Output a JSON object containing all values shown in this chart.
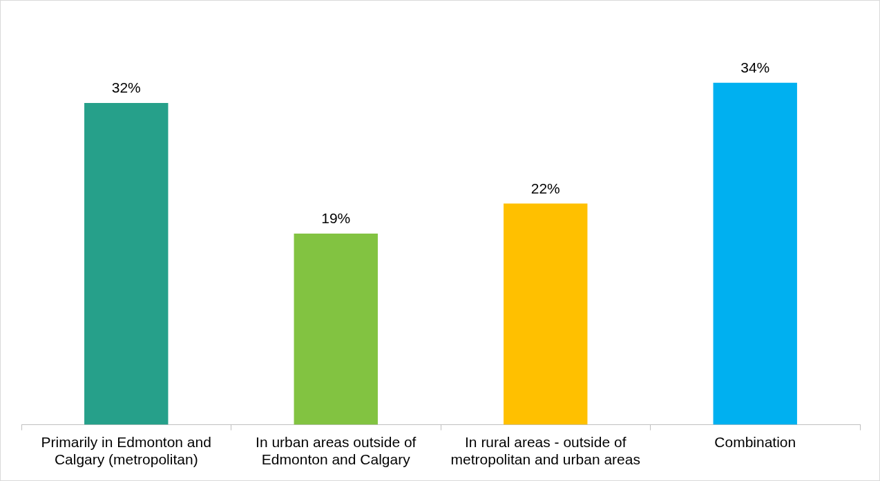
{
  "chart_data": {
    "type": "bar",
    "categories": [
      "Primarily in Edmonton and Calgary (metropolitan)",
      "In urban areas outside of Edmonton and Calgary",
      "In rural areas - outside of metropolitan and urban areas",
      "Combination"
    ],
    "values": [
      32,
      19,
      22,
      34
    ],
    "colors": [
      "#26a08a",
      "#82c341",
      "#ffc000",
      "#00b0f0"
    ],
    "value_labels": [
      "32%",
      "19%",
      "22%",
      "34%"
    ],
    "grid": false,
    "legend": false
  }
}
